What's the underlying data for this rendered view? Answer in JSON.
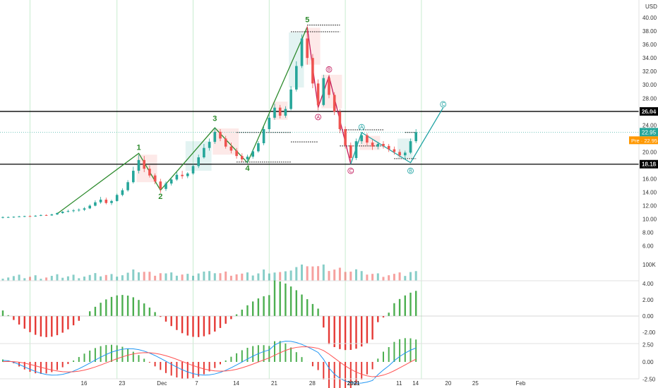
{
  "chart_data": {
    "type": "candlestick",
    "currency": "USD",
    "y_axis_ticks": [
      "40.00",
      "38.00",
      "36.00",
      "34.00",
      "32.00",
      "30.00",
      "28.00",
      "26.00",
      "24.00",
      "22.00",
      "20.00",
      "18.00",
      "16.00",
      "14.00",
      "12.00",
      "10.00",
      "8.00",
      "6.00"
    ],
    "ylim": [
      4.6,
      42
    ],
    "x_axis_ticks": [
      {
        "label": "16",
        "day": 16
      },
      {
        "label": "23",
        "day": 23
      },
      {
        "label": "Dec",
        "day": 30
      },
      {
        "label": "7",
        "day": 37
      },
      {
        "label": "14",
        "day": 44
      },
      {
        "label": "21",
        "day": 51
      },
      {
        "label": "28",
        "day": 58
      },
      {
        "label": "2021",
        "day": 65
      },
      {
        "label": "11",
        "day": 74
      },
      {
        "label": "14",
        "day": 77
      },
      {
        "label": "20",
        "day": 83
      },
      {
        "label": "25",
        "day": 88
      },
      {
        "label": "Feb",
        "day": 96
      }
    ],
    "horizontal_levels": [
      {
        "label": "26.04",
        "value": 26.04,
        "color": "#000000"
      },
      {
        "label": "18.18",
        "value": 18.18,
        "color": "#000000"
      }
    ],
    "last_price": {
      "label": "22.95",
      "value": 22.95,
      "color": "#26a69a"
    },
    "premarket_badge": {
      "label": "Pre · 22.95",
      "color": "#ff9800"
    },
    "vertical_gridlines_days": [
      6,
      22,
      36,
      50,
      64,
      78
    ],
    "candles": [
      [
        1,
        10.2,
        10.4,
        10.1,
        10.3
      ],
      [
        2,
        10.3,
        10.4,
        10.2,
        10.3
      ],
      [
        3,
        10.3,
        10.4,
        10.2,
        10.35
      ],
      [
        4,
        10.35,
        10.5,
        10.3,
        10.4
      ],
      [
        5,
        10.4,
        10.5,
        10.3,
        10.45
      ],
      [
        6,
        10.45,
        10.55,
        10.35,
        10.4
      ],
      [
        7,
        10.4,
        10.6,
        10.35,
        10.5
      ],
      [
        8,
        10.5,
        10.7,
        10.45,
        10.6
      ],
      [
        9,
        10.6,
        10.7,
        10.5,
        10.55
      ],
      [
        10,
        10.55,
        10.8,
        10.5,
        10.7
      ],
      [
        11,
        10.7,
        11.0,
        10.6,
        10.9
      ],
      [
        12,
        10.9,
        11.2,
        10.8,
        11.1
      ],
      [
        13,
        11.1,
        11.4,
        11.0,
        11.2
      ],
      [
        14,
        11.2,
        11.5,
        11.0,
        11.3
      ],
      [
        15,
        11.3,
        11.6,
        11.1,
        11.4
      ],
      [
        16,
        11.4,
        11.8,
        11.2,
        11.6
      ],
      [
        17,
        11.6,
        12.2,
        11.5,
        12.0
      ],
      [
        18,
        12.0,
        12.8,
        11.9,
        12.5
      ],
      [
        19,
        12.5,
        13.3,
        12.3,
        12.9
      ],
      [
        20,
        12.9,
        13.2,
        12.2,
        12.4
      ],
      [
        21,
        12.4,
        12.9,
        12.1,
        12.7
      ],
      [
        22,
        12.7,
        13.8,
        12.6,
        13.6
      ],
      [
        23,
        13.6,
        14.6,
        13.4,
        14.3
      ],
      [
        24,
        14.3,
        15.8,
        14.1,
        15.5
      ],
      [
        25,
        15.5,
        17.8,
        15.3,
        17.2
      ],
      [
        26,
        17.2,
        19.6,
        16.8,
        18.8
      ],
      [
        27,
        18.8,
        19.4,
        17.0,
        17.5
      ],
      [
        28,
        17.5,
        18.0,
        16.2,
        16.5
      ],
      [
        29,
        16.5,
        16.8,
        15.2,
        15.6
      ],
      [
        30,
        15.6,
        16.0,
        13.9,
        14.5
      ],
      [
        31,
        14.5,
        15.6,
        14.2,
        15.3
      ],
      [
        32,
        15.3,
        16.2,
        15.0,
        15.9
      ],
      [
        33,
        15.9,
        17.0,
        15.7,
        16.6
      ],
      [
        34,
        16.6,
        17.2,
        16.0,
        16.4
      ],
      [
        35,
        16.4,
        17.0,
        16.1,
        16.8
      ],
      [
        36,
        16.8,
        18.2,
        16.6,
        17.9
      ],
      [
        37,
        17.9,
        19.6,
        17.6,
        19.2
      ],
      [
        38,
        19.2,
        21.2,
        19.0,
        20.6
      ],
      [
        39,
        20.6,
        22.0,
        20.2,
        21.5
      ],
      [
        40,
        21.5,
        23.6,
        21.2,
        23.0
      ],
      [
        41,
        23.0,
        23.4,
        21.6,
        22.0
      ],
      [
        42,
        22.0,
        22.4,
        20.5,
        20.8
      ],
      [
        43,
        20.8,
        21.4,
        19.8,
        20.2
      ],
      [
        44,
        20.2,
        20.6,
        19.0,
        19.4
      ],
      [
        45,
        19.4,
        19.8,
        18.5,
        18.9
      ],
      [
        46,
        18.9,
        19.6,
        18.4,
        19.3
      ],
      [
        47,
        19.3,
        20.4,
        19.0,
        20.1
      ],
      [
        48,
        20.1,
        21.6,
        19.9,
        21.3
      ],
      [
        49,
        21.3,
        23.8,
        21.0,
        23.4
      ],
      [
        50,
        23.4,
        25.6,
        23.0,
        25.1
      ],
      [
        51,
        25.1,
        27.2,
        24.8,
        26.6
      ],
      [
        52,
        26.6,
        27.0,
        25.0,
        25.4
      ],
      [
        53,
        25.4,
        26.8,
        25.1,
        26.4
      ],
      [
        54,
        26.4,
        29.8,
        26.2,
        29.3
      ],
      [
        55,
        29.3,
        33.5,
        29.0,
        32.8
      ],
      [
        56,
        32.8,
        37.5,
        32.5,
        36.9
      ],
      [
        57,
        36.9,
        38.8,
        33.0,
        34.0
      ],
      [
        58,
        34.0,
        34.6,
        29.5,
        30.2
      ],
      [
        59,
        30.2,
        30.8,
        26.2,
        27.0
      ],
      [
        60,
        27.0,
        31.5,
        26.8,
        31.0
      ],
      [
        61,
        31.0,
        31.4,
        28.0,
        28.5
      ],
      [
        62,
        28.5,
        28.9,
        25.5,
        26.0
      ],
      [
        63,
        26.0,
        26.4,
        22.8,
        23.4
      ],
      [
        64,
        23.4,
        23.8,
        20.5,
        21.0
      ],
      [
        65,
        21.0,
        21.4,
        18.6,
        19.1
      ],
      [
        66,
        19.1,
        22.0,
        18.8,
        21.6
      ],
      [
        67,
        21.6,
        23.0,
        21.2,
        22.5
      ],
      [
        68,
        22.5,
        22.8,
        21.0,
        21.4
      ],
      [
        69,
        21.4,
        21.8,
        20.3,
        20.8
      ],
      [
        70,
        20.8,
        21.5,
        20.4,
        21.2
      ],
      [
        71,
        21.2,
        21.6,
        20.5,
        20.9
      ],
      [
        72,
        20.9,
        21.2,
        20.0,
        20.4
      ],
      [
        73,
        20.4,
        20.8,
        19.6,
        20.0
      ],
      [
        74,
        20.0,
        20.4,
        19.2,
        19.5
      ],
      [
        75,
        19.5,
        20.2,
        19.0,
        19.9
      ],
      [
        76,
        19.9,
        22.0,
        19.7,
        21.6
      ],
      [
        77,
        21.6,
        23.4,
        21.3,
        22.95
      ]
    ],
    "elliott_wave_labels": [
      {
        "label": "1",
        "day": 26,
        "price": 20.3
      },
      {
        "label": "2",
        "day": 30,
        "price": 13.0
      },
      {
        "label": "3",
        "day": 40,
        "price": 24.6
      },
      {
        "label": "4",
        "day": 46,
        "price": 17.2
      },
      {
        "label": "5",
        "day": 57,
        "price": 39.3
      }
    ],
    "correction_labels": [
      {
        "label": "A",
        "day": 59,
        "price": 25.2
      },
      {
        "label": "B",
        "day": 61,
        "price": 32.3
      },
      {
        "label": "C",
        "day": 65,
        "price": 17.2
      },
      {
        "label": "A",
        "day": 67,
        "price": 23.7
      },
      {
        "label": "B",
        "day": 76,
        "price": 17.2
      },
      {
        "label": "C",
        "day": 82,
        "price": 27.1
      }
    ],
    "volume_axis_label": "100K",
    "osc1_axis_ticks": [
      "4.00",
      "2.00",
      "0.00",
      "-2.00"
    ],
    "osc2_axis_ticks": [
      "2.50",
      "0.00",
      "-2.50"
    ]
  }
}
